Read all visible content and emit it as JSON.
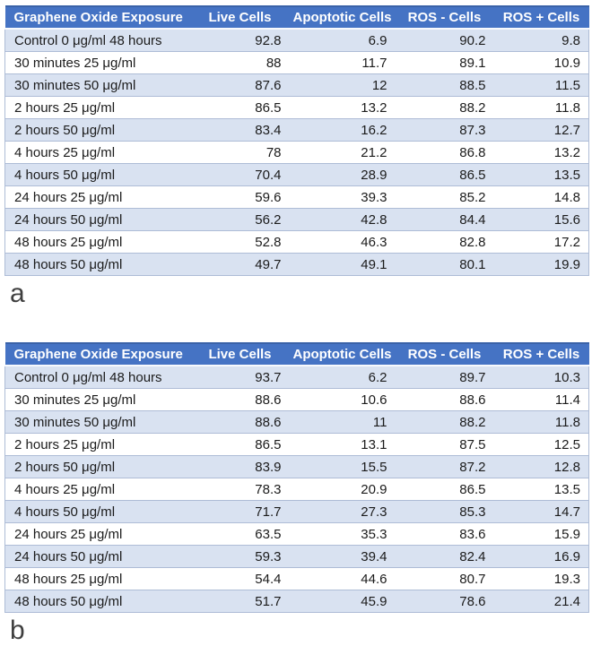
{
  "colors": {
    "header_bg": "#4573c4",
    "header_text": "#ffffff",
    "header_top": "#3a62a8",
    "band_bg": "#d9e2f1",
    "row_border": "#aebcd6",
    "text": "#1b1b1b",
    "label": "#3f3f3f"
  },
  "tables": [
    {
      "label": "a",
      "columns": [
        "Graphene Oxide Exposure",
        "Live Cells",
        "Apoptotic Cells",
        "ROS - Cells",
        "ROS + Cells"
      ],
      "rows": [
        {
          "exposure": "Control 0 μg/ml 48 hours",
          "values": [
            "92.8",
            "6.9",
            "90.2",
            "9.8"
          ]
        },
        {
          "exposure": "30 minutes 25 μg/ml",
          "values": [
            "88",
            "11.7",
            "89.1",
            "10.9"
          ]
        },
        {
          "exposure": "30 minutes 50 μg/ml",
          "values": [
            "87.6",
            "12",
            "88.5",
            "11.5"
          ]
        },
        {
          "exposure": "2 hours 25 μg/ml",
          "values": [
            "86.5",
            "13.2",
            "88.2",
            "11.8"
          ]
        },
        {
          "exposure": "2 hours 50 μg/ml",
          "values": [
            "83.4",
            "16.2",
            "87.3",
            "12.7"
          ]
        },
        {
          "exposure": "4 hours 25 μg/ml",
          "values": [
            "78",
            "21.2",
            "86.8",
            "13.2"
          ]
        },
        {
          "exposure": "4 hours 50 μg/ml",
          "values": [
            "70.4",
            "28.9",
            "86.5",
            "13.5"
          ]
        },
        {
          "exposure": "24 hours 25 μg/ml",
          "values": [
            "59.6",
            "39.3",
            "85.2",
            "14.8"
          ]
        },
        {
          "exposure": "24 hours 50 μg/ml",
          "values": [
            "56.2",
            "42.8",
            "84.4",
            "15.6"
          ]
        },
        {
          "exposure": "48 hours 25 μg/ml",
          "values": [
            "52.8",
            "46.3",
            "82.8",
            "17.2"
          ]
        },
        {
          "exposure": "48 hours 50 μg/ml",
          "values": [
            "49.7",
            "49.1",
            "80.1",
            "19.9"
          ]
        }
      ]
    },
    {
      "label": "b",
      "columns": [
        "Graphene Oxide Exposure",
        "Live Cells",
        "Apoptotic Cells",
        "ROS - Cells",
        "ROS + Cells"
      ],
      "rows": [
        {
          "exposure": "Control 0 μg/ml 48 hours",
          "values": [
            "93.7",
            "6.2",
            "89.7",
            "10.3"
          ]
        },
        {
          "exposure": "30 minutes 25 μg/ml",
          "values": [
            "88.6",
            "10.6",
            "88.6",
            "11.4"
          ]
        },
        {
          "exposure": "30 minutes 50 μg/ml",
          "values": [
            "88.6",
            "11",
            "88.2",
            "11.8"
          ]
        },
        {
          "exposure": "2 hours 25 μg/ml",
          "values": [
            "86.5",
            "13.1",
            "87.5",
            "12.5"
          ]
        },
        {
          "exposure": "2 hours 50 μg/ml",
          "values": [
            "83.9",
            "15.5",
            "87.2",
            "12.8"
          ]
        },
        {
          "exposure": "4 hours 25 μg/ml",
          "values": [
            "78.3",
            "20.9",
            "86.5",
            "13.5"
          ]
        },
        {
          "exposure": "4 hours 50 μg/ml",
          "values": [
            "71.7",
            "27.3",
            "85.3",
            "14.7"
          ]
        },
        {
          "exposure": "24 hours 25 μg/ml",
          "values": [
            "63.5",
            "35.3",
            "83.6",
            "15.9"
          ]
        },
        {
          "exposure": "24 hours 50 μg/ml",
          "values": [
            "59.3",
            "39.4",
            "82.4",
            "16.9"
          ]
        },
        {
          "exposure": "48 hours 25 μg/ml",
          "values": [
            "54.4",
            "44.6",
            "80.7",
            "19.3"
          ]
        },
        {
          "exposure": "48 hours 50 μg/ml",
          "values": [
            "51.7",
            "45.9",
            "78.6",
            "21.4"
          ]
        }
      ]
    }
  ]
}
